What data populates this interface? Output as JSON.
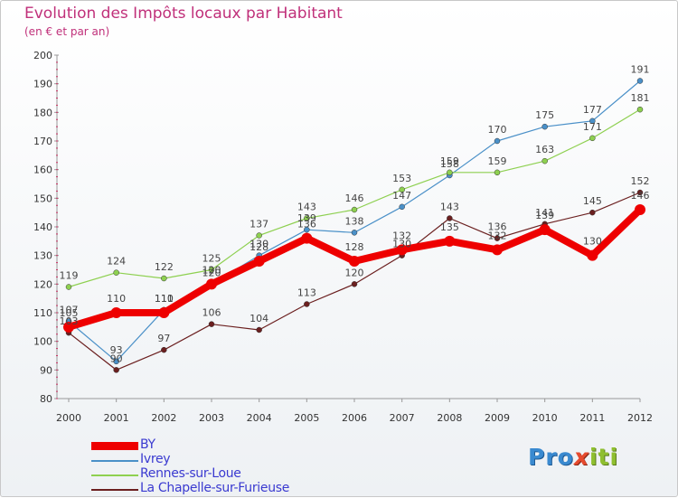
{
  "title": "Evolution des Impôts locaux par Habitant",
  "subtitle": "(en € et par an)",
  "logo": {
    "pre": "Pro",
    "x": "x",
    "post": "iti"
  },
  "colors": {
    "axis": "#999999",
    "grid_tick": "#cc3366",
    "tick_label": "#333333"
  },
  "chart_data": {
    "type": "line",
    "title": "Evolution des Impôts locaux par Habitant",
    "subtitle": "(en € et par an)",
    "xlabel": "",
    "ylabel": "",
    "ylim": [
      80,
      200
    ],
    "yticks": [
      80,
      90,
      100,
      110,
      120,
      130,
      140,
      150,
      160,
      170,
      180,
      190,
      200
    ],
    "x": [
      "2000",
      "2001",
      "2002",
      "2003",
      "2004",
      "2005",
      "2006",
      "2007",
      "2008",
      "2009",
      "2010",
      "2011",
      "2012"
    ],
    "legend_position": "bottom-left",
    "series": [
      {
        "name": "BY",
        "color": "#ee0000",
        "line_width": "thick",
        "values": [
          105,
          110,
          110,
          120,
          128,
          136,
          128,
          132,
          135,
          132,
          139,
          130,
          146
        ],
        "labels": [
          "105",
          "110",
          "110",
          "120",
          "128",
          "136",
          "128",
          "132",
          "135",
          "132",
          "139",
          "130",
          "146"
        ]
      },
      {
        "name": "Ivrey",
        "color": "#4a90c8",
        "line_width": "thin",
        "values": [
          107,
          93,
          111,
          120,
          130,
          139,
          138,
          147,
          158,
          170,
          175,
          177,
          191
        ],
        "labels": [
          "107",
          "93",
          "111",
          "120",
          "130",
          "139",
          "138",
          "147",
          "158",
          "170",
          "175",
          "177",
          "191"
        ]
      },
      {
        "name": "Rennes-sur-Loue",
        "color": "#8ed050",
        "line_width": "thin",
        "values": [
          119,
          124,
          122,
          125,
          137,
          143,
          146,
          153,
          159,
          159,
          163,
          171,
          181
        ],
        "labels": [
          "119",
          "124",
          "122",
          "125",
          "137",
          "143",
          "146",
          "153",
          "159",
          "159",
          "163",
          "171",
          "181"
        ]
      },
      {
        "name": "La Chapelle-sur-Furieuse",
        "color": "#6b1f1f",
        "line_width": "thin",
        "values": [
          103,
          90,
          97,
          106,
          104,
          113,
          120,
          130,
          143,
          136,
          141,
          145,
          152
        ],
        "labels": [
          "103",
          "90",
          "97",
          "106",
          "104",
          "113",
          "120",
          "130",
          "143",
          "136",
          "141",
          "145",
          "152"
        ]
      }
    ]
  }
}
